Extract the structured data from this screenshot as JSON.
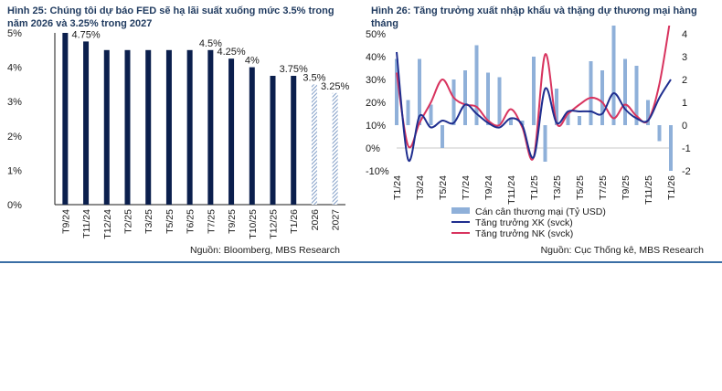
{
  "figures": [
    {
      "title": "Hình 25: Chúng tôi dự báo FED sẽ hạ lãi suất xuống mức 3.5% trong năm 2026 và 3.25% trong 2027",
      "source": "Nguồn: Bloomberg, MBS Research"
    },
    {
      "title": "Hình 26: Tăng trưởng xuất nhập khẩu và thặng dự thương mại hàng tháng",
      "source": "Nguồn: Cục Thống kê, MBS Research"
    }
  ],
  "chart_data": [
    {
      "type": "bar",
      "title": "Hình 25: Chúng tôi dự báo FED sẽ hạ lãi suất xuống mức 3.5% trong năm 2026 và 3.25% trong 2027",
      "categories": [
        "T9/24",
        "T11/24",
        "T12/24",
        "T2/25",
        "T3/25",
        "T5/25",
        "T6/25",
        "T7/25",
        "T9/25",
        "T10/25",
        "T12/25",
        "T1/26",
        "2026",
        "2027"
      ],
      "values": [
        5.0,
        4.75,
        4.5,
        4.5,
        4.5,
        4.5,
        4.5,
        4.5,
        4.25,
        4.0,
        3.75,
        3.75,
        3.5,
        3.25
      ],
      "forecast_from_index": 12,
      "data_labels": {
        "1": "4.75%",
        "7": "4.5%",
        "8": "4.25%",
        "9": "4%",
        "11": "3.75%",
        "12": "3.5%",
        "13": "3.25%"
      },
      "ylim": [
        0,
        5
      ],
      "yticks": [
        "0%",
        "1%",
        "2%",
        "3%",
        "4%",
        "5%"
      ],
      "grid": false,
      "colors": {
        "bar": "#0b1f4d",
        "forecast_hatch": "#7f9cc6"
      }
    },
    {
      "type": "line",
      "title": "Hình 26: Tăng trưởng xuất nhập khẩu và thặng dự thương mại hàng tháng",
      "x": [
        "T1/24",
        "T2/24",
        "T3/24",
        "T4/24",
        "T5/24",
        "T6/24",
        "T7/24",
        "T8/24",
        "T9/24",
        "T10/24",
        "T11/24",
        "T12/24",
        "T1/25",
        "T2/25",
        "T3/25",
        "T4/25",
        "T5/25",
        "T6/25",
        "T7/25",
        "T8/25",
        "T9/25",
        "T10/25",
        "T11/25",
        "T12/25",
        "T1/26"
      ],
      "x_tick_labels": [
        "T1/24",
        "T3/24",
        "T5/24",
        "T7/24",
        "T9/24",
        "T11/24",
        "T1/25",
        "T3/25",
        "T5/25",
        "T7/25",
        "T9/25",
        "T11/25",
        "T1/26"
      ],
      "series": [
        {
          "name": "Cán cân thương mại (Tỷ USD)",
          "kind": "bar",
          "axis": "right",
          "color": "#8fb0d9",
          "values": [
            2.9,
            1.1,
            2.9,
            0.9,
            -1.0,
            2.0,
            2.4,
            3.5,
            2.3,
            2.1,
            0.3,
            0.2,
            3.0,
            -1.6,
            1.6,
            0.6,
            0.4,
            2.8,
            2.4,
            4.5,
            2.9,
            2.6,
            1.1,
            -0.7,
            -2.0
          ]
        },
        {
          "name": "Tăng trưởng XK (svck)",
          "kind": "line",
          "axis": "left",
          "color": "#1f2e8f",
          "values": [
            42,
            -5,
            14,
            9,
            12,
            11,
            19,
            15,
            11,
            9,
            13,
            10,
            -4,
            26,
            11,
            16,
            16,
            16,
            15,
            24,
            17,
            13,
            12,
            22,
            30
          ]
        },
        {
          "name": "Tăng trưởng NK (svck)",
          "kind": "line",
          "axis": "left",
          "color": "#d8345f",
          "values": [
            33,
            1,
            11,
            20,
            30,
            22,
            19,
            18,
            12,
            10,
            17,
            9,
            -4,
            41,
            11,
            15,
            19,
            22,
            20,
            13,
            19,
            14,
            12,
            28,
            58
          ]
        }
      ],
      "ylim_left": [
        -10,
        50
      ],
      "yticks_left": [
        "-10%",
        "0%",
        "10%",
        "20%",
        "30%",
        "40%",
        "50%"
      ],
      "ylim_right": [
        -2,
        4
      ],
      "yticks_right": [
        "-2",
        "-1",
        "0",
        "1",
        "2",
        "3",
        "4"
      ],
      "legend_position": "bottom-left",
      "grid": false
    }
  ]
}
